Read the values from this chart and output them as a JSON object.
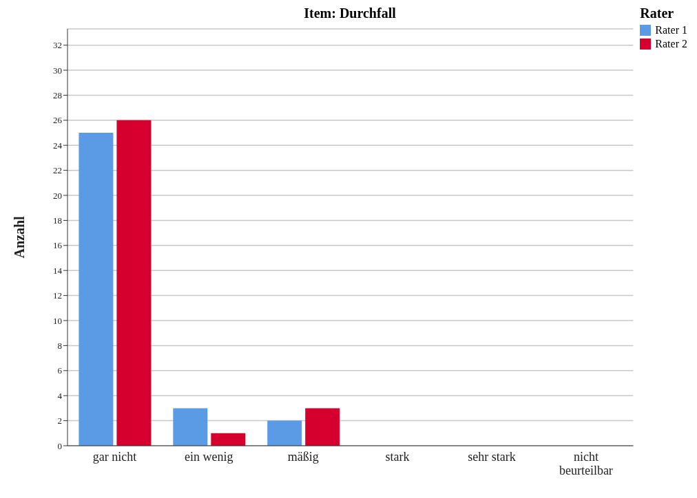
{
  "chart_data": {
    "type": "bar",
    "title": "Item: Durchfall",
    "ylabel": "Anzahl",
    "legend_title": "Rater",
    "categories": [
      "gar nicht",
      "ein wenig",
      "mäßig",
      "stark",
      "sehr stark",
      "nicht beurteilbar"
    ],
    "series": [
      {
        "name": "Rater 1",
        "color": "#5b9be6",
        "values": [
          25,
          3,
          2,
          0,
          0,
          0
        ]
      },
      {
        "name": "Rater 2",
        "color": "#d6002e",
        "values": [
          26,
          1,
          3,
          0,
          0,
          0
        ]
      }
    ],
    "ylim": [
      0,
      33.3
    ],
    "yticks": [
      0,
      2,
      4,
      6,
      8,
      10,
      12,
      14,
      16,
      18,
      20,
      22,
      24,
      26,
      28,
      30,
      32
    ],
    "grid": "y",
    "legend": "top right"
  }
}
